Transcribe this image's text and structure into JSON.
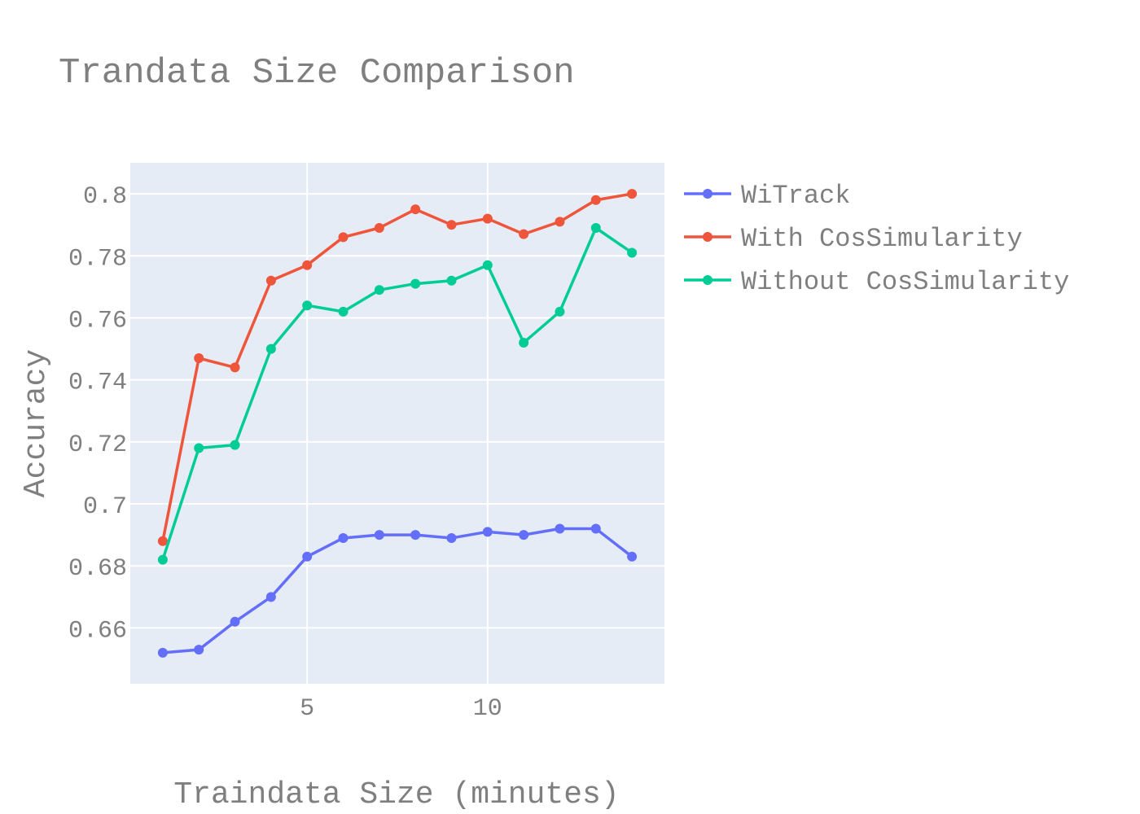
{
  "chart_data": {
    "type": "line",
    "title": "Trandata Size Comparison",
    "xlabel": "Traindata Size (minutes)",
    "ylabel": "Accuracy",
    "xlim": [
      0.1,
      14.9
    ],
    "ylim": [
      0.642,
      0.81
    ],
    "xticks": [
      5,
      10
    ],
    "xtick_labels": [
      "5",
      "10"
    ],
    "yticks": [
      0.66,
      0.68,
      0.7,
      0.72,
      0.74,
      0.76,
      0.78,
      0.8
    ],
    "ytick_labels": [
      "0.66",
      "0.68",
      "0.7",
      "0.72",
      "0.74",
      "0.76",
      "0.78",
      "0.8"
    ],
    "grid": true,
    "legend_position": "top-right, outside plot",
    "plot_background": "#e5ecf6",
    "x": [
      1,
      2,
      3,
      4,
      5,
      6,
      7,
      8,
      9,
      10,
      11,
      12,
      13,
      14
    ],
    "series": [
      {
        "name": "WiTrack",
        "color": "#636efa",
        "values": [
          0.652,
          0.653,
          0.662,
          0.67,
          0.683,
          0.689,
          0.69,
          0.69,
          0.689,
          0.691,
          0.69,
          0.692,
          0.692,
          0.683
        ]
      },
      {
        "name": "With CosSimularity",
        "color": "#ef553b",
        "values": [
          0.688,
          0.747,
          0.744,
          0.772,
          0.777,
          0.786,
          0.789,
          0.795,
          0.79,
          0.792,
          0.787,
          0.791,
          0.798,
          0.8
        ]
      },
      {
        "name": "Without CosSimularity",
        "color": "#00cc96",
        "values": [
          0.682,
          0.718,
          0.719,
          0.75,
          0.764,
          0.762,
          0.769,
          0.771,
          0.772,
          0.777,
          0.752,
          0.762,
          0.789,
          0.781
        ]
      }
    ]
  }
}
